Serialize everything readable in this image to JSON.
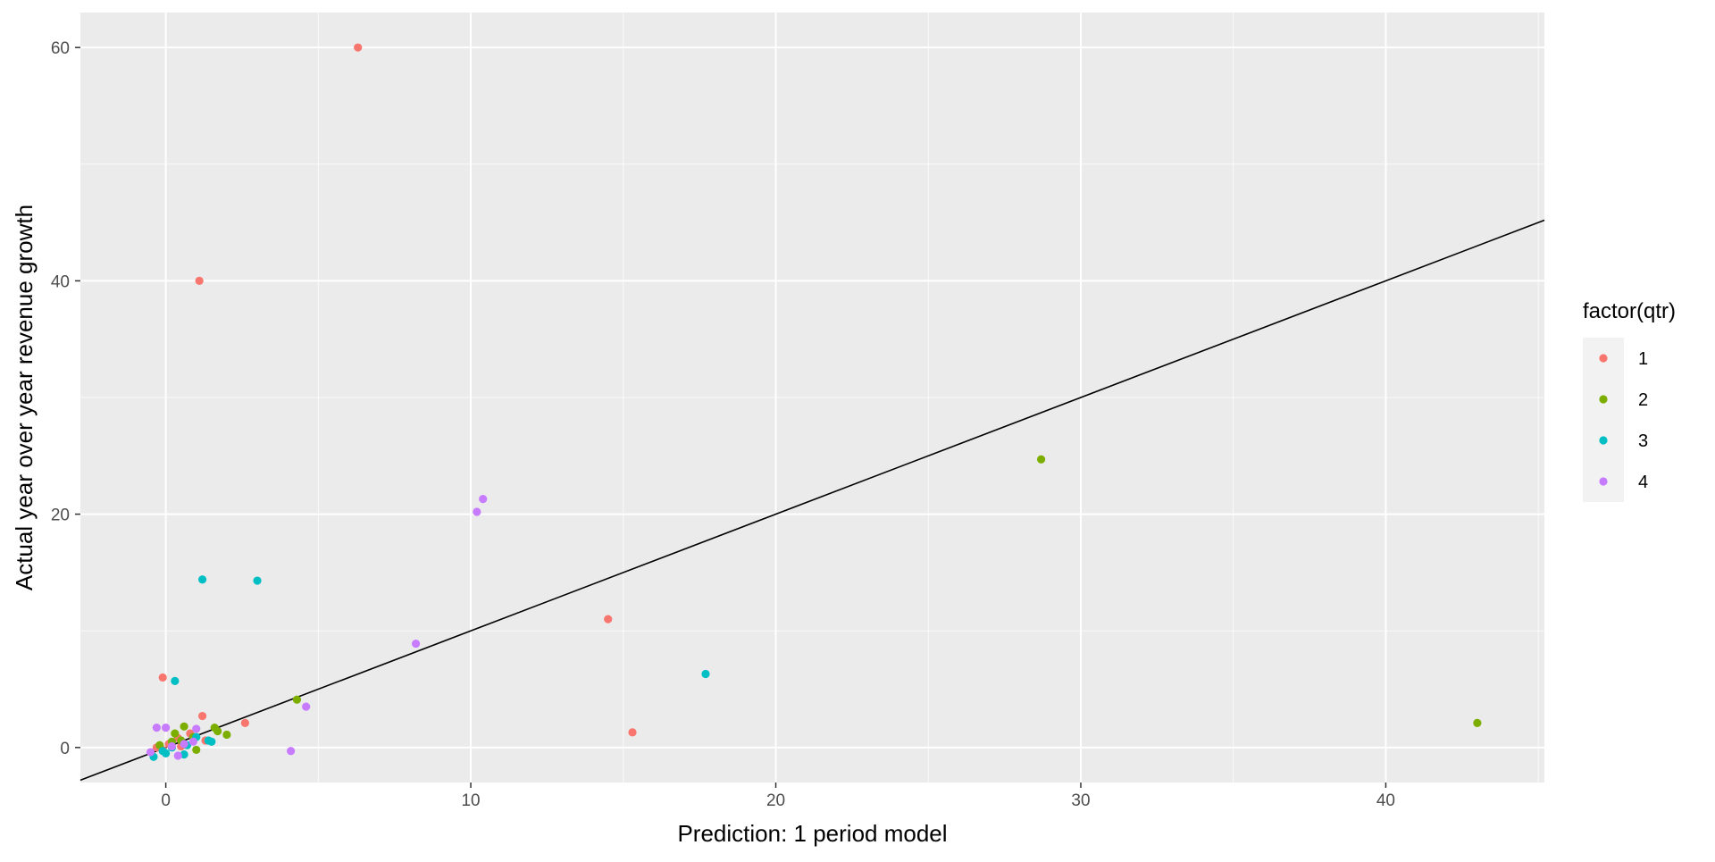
{
  "chart_data": {
    "type": "scatter",
    "title": "",
    "xlabel": "Prediction: 1 period model",
    "ylabel": "Actual year over year revenue growth",
    "xlim": [
      -2.8,
      45.2
    ],
    "ylim": [
      -3,
      63
    ],
    "x_ticks": [
      0,
      10,
      20,
      30,
      40
    ],
    "x_tick_labels": [
      "0",
      "10",
      "20",
      "30",
      "40"
    ],
    "y_ticks": [
      0,
      20,
      40,
      60
    ],
    "y_tick_labels": [
      "0",
      "20",
      "40",
      "60"
    ],
    "grid": true,
    "legend": {
      "title": "factor(qtr)",
      "position": "right"
    },
    "reference_line": {
      "type": "identity",
      "slope": 1,
      "intercept": 0,
      "color": "#000000"
    },
    "colors": {
      "panel_background": "#ebebeb",
      "grid": "#ffffff",
      "legend_key_background": "#f2f2f2"
    },
    "series": [
      {
        "name": "1",
        "color": "#F8766D",
        "points": [
          [
            6.3,
            60.0
          ],
          [
            1.1,
            40.0
          ],
          [
            14.5,
            11.0
          ],
          [
            15.3,
            1.3
          ],
          [
            -0.1,
            6.0
          ],
          [
            2.6,
            2.1
          ],
          [
            1.2,
            2.7
          ],
          [
            -0.3,
            0.0
          ],
          [
            0.1,
            0.3
          ],
          [
            0.4,
            0.8
          ],
          [
            0.8,
            1.2
          ],
          [
            1.3,
            0.6
          ],
          [
            -0.1,
            -0.2
          ],
          [
            0.5,
            0.1
          ]
        ]
      },
      {
        "name": "2",
        "color": "#7CAE00",
        "points": [
          [
            28.7,
            24.7
          ],
          [
            43.0,
            2.1
          ],
          [
            4.3,
            4.1
          ],
          [
            1.6,
            1.7
          ],
          [
            2.0,
            1.1
          ],
          [
            0.6,
            1.8
          ],
          [
            0.3,
            1.2
          ],
          [
            1.0,
            -0.2
          ],
          [
            0.2,
            0.5
          ],
          [
            0.9,
            0.9
          ],
          [
            1.7,
            1.4
          ],
          [
            -0.2,
            0.2
          ],
          [
            0.5,
            0.6
          ]
        ]
      },
      {
        "name": "3",
        "color": "#00BFC4",
        "points": [
          [
            1.2,
            14.4
          ],
          [
            3.0,
            14.3
          ],
          [
            17.7,
            6.3
          ],
          [
            0.3,
            5.7
          ],
          [
            -0.4,
            -0.8
          ],
          [
            0.0,
            -0.5
          ],
          [
            0.6,
            -0.6
          ],
          [
            1.4,
            0.6
          ],
          [
            0.7,
            0.2
          ],
          [
            1.0,
            0.9
          ],
          [
            0.2,
            0.0
          ],
          [
            -0.1,
            -0.3
          ],
          [
            1.5,
            0.5
          ]
        ]
      },
      {
        "name": "4",
        "color": "#C77CFF",
        "points": [
          [
            10.4,
            21.3
          ],
          [
            10.2,
            20.2
          ],
          [
            8.2,
            8.9
          ],
          [
            4.6,
            3.5
          ],
          [
            4.1,
            -0.3
          ],
          [
            -0.3,
            1.7
          ],
          [
            0.0,
            1.7
          ],
          [
            1.0,
            1.6
          ],
          [
            0.4,
            -0.7
          ],
          [
            -0.5,
            -0.4
          ],
          [
            0.9,
            0.5
          ],
          [
            0.2,
            0.1
          ],
          [
            0.6,
            0.3
          ]
        ]
      }
    ]
  }
}
